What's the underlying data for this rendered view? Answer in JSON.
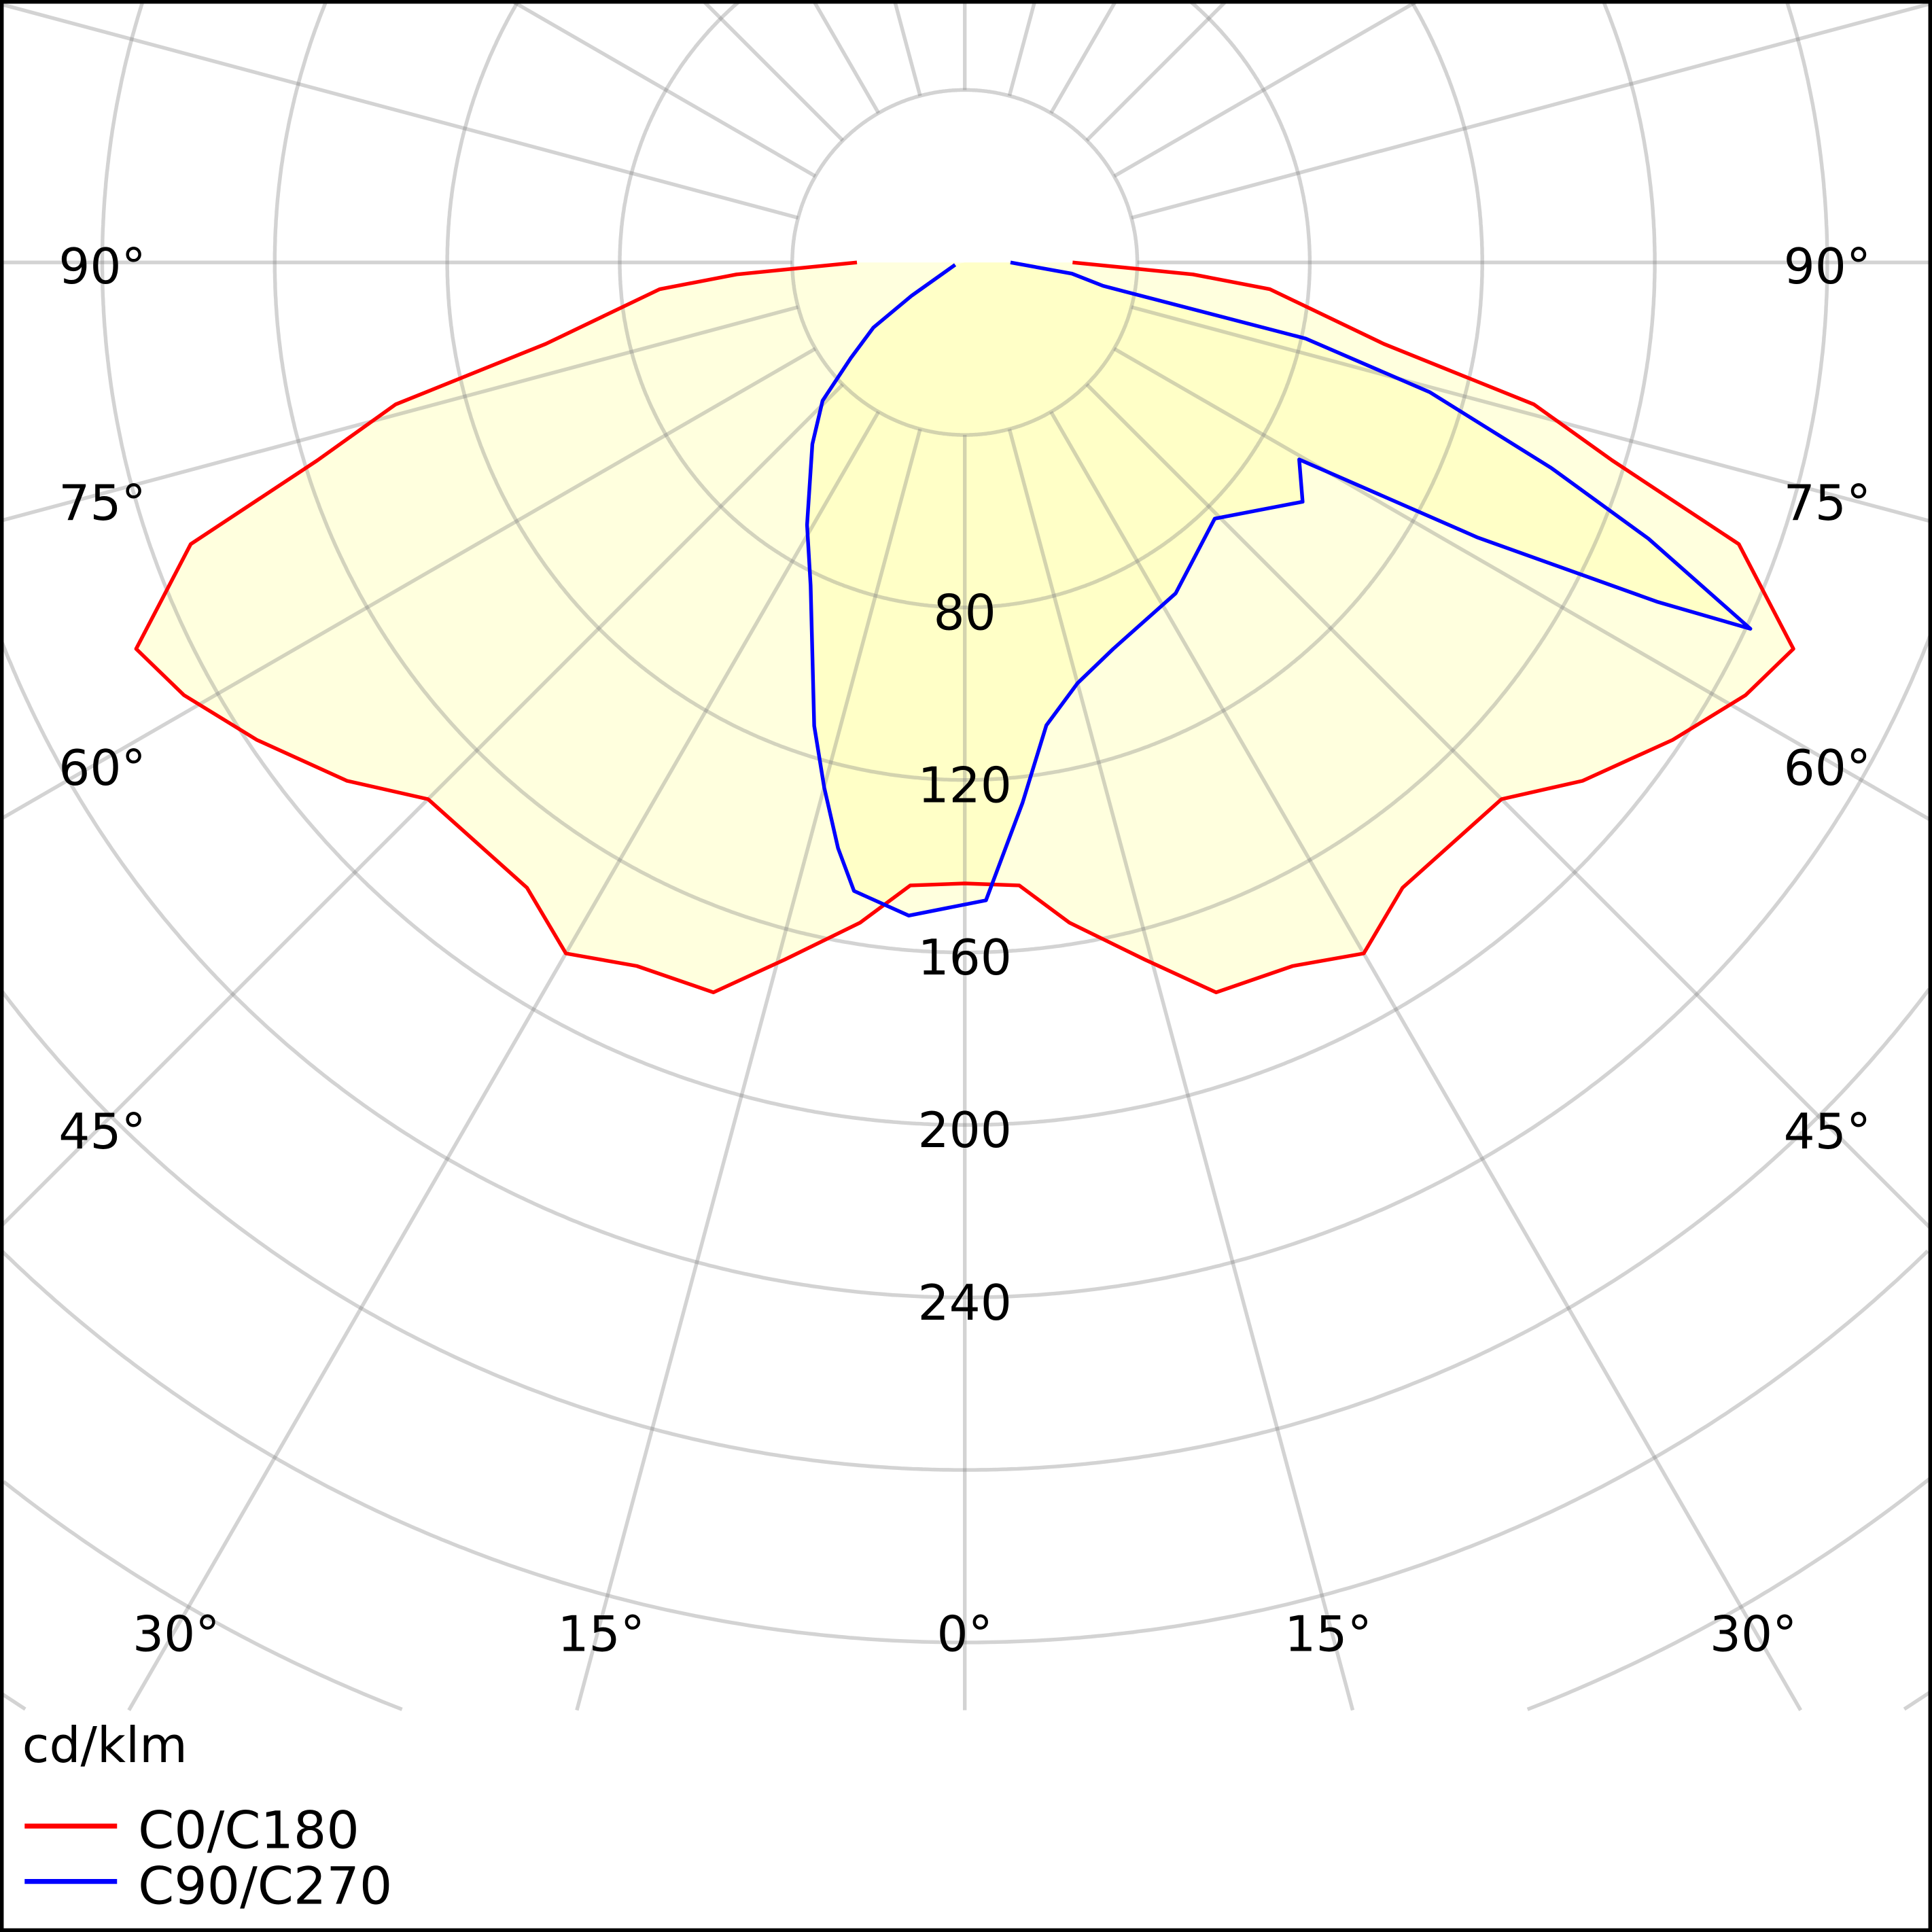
{
  "chart_data": {
    "type": "polar-line",
    "title": "",
    "unit_label": "cd/klm",
    "radial_ticks": [
      80,
      120,
      160,
      200,
      240
    ],
    "ring_step": 40,
    "angle_tick_labels": {
      "90": "90°",
      "75": "75°",
      "60": "60°",
      "45": "45°",
      "30": "30°",
      "15": "15°",
      "0": "0°"
    },
    "angle_step_deg": 15,
    "grid": true,
    "legend_position": "bottom-left",
    "series": [
      {
        "name": "C0/C180",
        "color": "#ff0000",
        "points": [
          [
            -90,
            25
          ],
          [
            -87,
            53
          ],
          [
            -85,
            71
          ],
          [
            -79,
            99
          ],
          [
            -76,
            136
          ],
          [
            -73,
            157
          ],
          [
            -70,
            191
          ],
          [
            -65,
            212
          ],
          [
            -61,
            207
          ],
          [
            -56,
            198
          ],
          [
            -50,
            187
          ],
          [
            -45,
            176
          ],
          [
            -35,
            177
          ],
          [
            -30,
            185
          ],
          [
            -25,
            180
          ],
          [
            -19,
            179
          ],
          [
            -14.5,
            167
          ],
          [
            -9,
            155
          ],
          [
            -5,
            145
          ],
          [
            0,
            144
          ],
          [
            5,
            145
          ],
          [
            9,
            155
          ],
          [
            14.5,
            167
          ],
          [
            19,
            179
          ],
          [
            25,
            180
          ],
          [
            30,
            185
          ],
          [
            35,
            177
          ],
          [
            45,
            176
          ],
          [
            50,
            187
          ],
          [
            56,
            198
          ],
          [
            61,
            207
          ],
          [
            65,
            212
          ],
          [
            70,
            191
          ],
          [
            73,
            157
          ],
          [
            76,
            136
          ],
          [
            79,
            99
          ],
          [
            85,
            71
          ],
          [
            87,
            53
          ],
          [
            90,
            25
          ]
        ]
      },
      {
        "name": "C90/C270",
        "color": "#0000ff",
        "points": [
          [
            -76,
            2.3
          ],
          [
            -58,
            14.5
          ],
          [
            -54.5,
            26
          ],
          [
            -50,
            34.5
          ],
          [
            -45.8,
            46
          ],
          [
            -40,
            55
          ],
          [
            -31,
            71
          ],
          [
            -25.5,
            83
          ],
          [
            -18,
            113
          ],
          [
            -15,
            126
          ],
          [
            -12.2,
            139
          ],
          [
            -10,
            148
          ],
          [
            -4.9,
            152
          ],
          [
            1.9,
            148
          ],
          [
            6.1,
            126
          ],
          [
            10,
            109
          ],
          [
            15,
            101
          ],
          [
            21,
            96
          ],
          [
            32.5,
            91
          ],
          [
            44.3,
            83
          ],
          [
            54.7,
            96
          ],
          [
            59.5,
            90
          ],
          [
            61.8,
            135
          ],
          [
            63.9,
            179
          ],
          [
            65,
            201
          ],
          [
            68,
            171
          ],
          [
            70.7,
            144
          ],
          [
            74.4,
            112
          ],
          [
            77.4,
            81
          ],
          [
            80.4,
            32.5
          ],
          [
            84,
            25
          ],
          [
            90,
            10.6
          ]
        ]
      }
    ]
  }
}
